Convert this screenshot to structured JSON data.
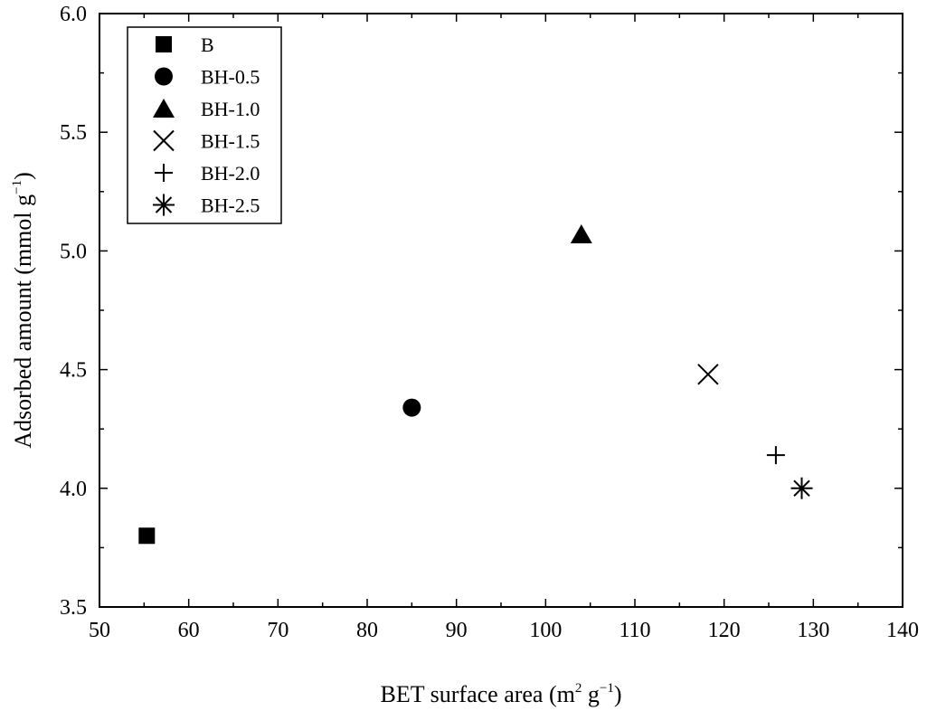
{
  "chart_data": {
    "type": "scatter",
    "title": "",
    "xlabel": {
      "base": "BET surface area (m",
      "sup1": "2",
      "mid": " g",
      "sup2": "−1",
      "end": ")"
    },
    "ylabel": {
      "base": "Adsorbed amount (mmol g",
      "sup": "−1",
      "end": ")"
    },
    "xlim": [
      50,
      140
    ],
    "ylim": [
      3.5,
      6.0
    ],
    "xticks": [
      "50",
      "60",
      "70",
      "80",
      "90",
      "100",
      "110",
      "120",
      "130",
      "140"
    ],
    "yticks": [
      "3.5",
      "4.0",
      "4.5",
      "5.0",
      "5.5",
      "6.0"
    ],
    "legend_position": "top-left",
    "series": [
      {
        "name": "B",
        "marker": "square",
        "points": [
          {
            "x": 55.3,
            "y": 3.8
          }
        ]
      },
      {
        "name": "BH-0.5",
        "marker": "circle",
        "points": [
          {
            "x": 85.0,
            "y": 4.34
          }
        ]
      },
      {
        "name": "BH-1.0",
        "marker": "triangle",
        "points": [
          {
            "x": 104.0,
            "y": 5.07
          }
        ]
      },
      {
        "name": "BH-1.5",
        "marker": "x",
        "points": [
          {
            "x": 118.2,
            "y": 4.48
          }
        ]
      },
      {
        "name": "BH-2.0",
        "marker": "plus",
        "points": [
          {
            "x": 125.8,
            "y": 4.14
          }
        ]
      },
      {
        "name": "BH-2.5",
        "marker": "star",
        "points": [
          {
            "x": 128.7,
            "y": 4.0
          }
        ]
      }
    ]
  }
}
